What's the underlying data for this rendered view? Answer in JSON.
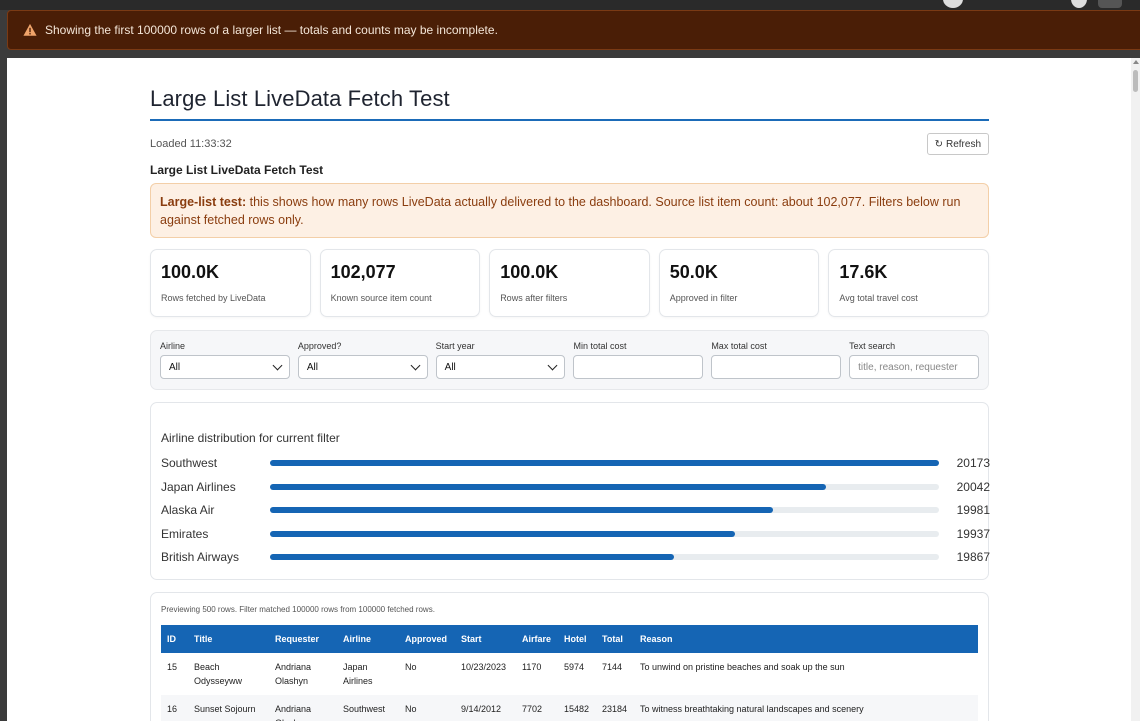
{
  "banner": {
    "text": "Showing the first 100000 rows of a larger list — totals and counts may be incomplete."
  },
  "page": {
    "title": "Large List LiveData Fetch Test",
    "loaded": "Loaded 11:33:32",
    "refresh_label": "Refresh",
    "subtitle": "Large List LiveData Fetch Test"
  },
  "alert": {
    "bold": "Large-list test:",
    "text": " this shows how many rows LiveData actually delivered to the dashboard. Source list item count: about 102,077. Filters below run against fetched rows only."
  },
  "stats": [
    {
      "value": "100.0K",
      "label": "Rows fetched by LiveData"
    },
    {
      "value": "102,077",
      "label": "Known source item count"
    },
    {
      "value": "100.0K",
      "label": "Rows after filters"
    },
    {
      "value": "50.0K",
      "label": "Approved in filter"
    },
    {
      "value": "17.6K",
      "label": "Avg total travel cost"
    }
  ],
  "filters": {
    "airline": {
      "label": "Airline",
      "value": "All"
    },
    "approved": {
      "label": "Approved?",
      "value": "All"
    },
    "start_year": {
      "label": "Start year",
      "value": "All"
    },
    "min_cost": {
      "label": "Min total cost",
      "value": ""
    },
    "max_cost": {
      "label": "Max total cost",
      "value": ""
    },
    "text_search": {
      "label": "Text search",
      "placeholder": "title, reason, requester"
    }
  },
  "chart_data": {
    "type": "bar",
    "title": "Airline distribution for current filter",
    "categories": [
      "Southwest",
      "Japan Airlines",
      "Alaska Air",
      "Emirates",
      "British Airways"
    ],
    "values": [
      20173,
      20042,
      19981,
      19937,
      19867
    ],
    "max": 20173,
    "color": "#1565b4"
  },
  "table": {
    "preview_text": "Previewing 500 rows. Filter matched 100000 rows from 100000 fetched rows.",
    "columns": [
      "ID",
      "Title",
      "Requester",
      "Airline",
      "Approved",
      "Start",
      "Airfare",
      "Hotel",
      "Total",
      "Reason"
    ],
    "rows": [
      {
        "id": "15",
        "title": "Beach Odysseyww",
        "requester": "Andriana Olashyn",
        "airline": "Japan Airlines",
        "approved": "No",
        "start": "10/23/2023",
        "airfare": "1170",
        "hotel": "5974",
        "total": "7144",
        "reason": "To unwind on pristine beaches and soak up the sun"
      },
      {
        "id": "16",
        "title": "Sunset Sojourn",
        "requester": "Andriana Olashyn",
        "airline": "Southwest",
        "approved": "No",
        "start": "9/14/2012",
        "airfare": "7702",
        "hotel": "15482",
        "total": "23184",
        "reason": "To witness breathtaking natural landscapes and scenery"
      }
    ]
  },
  "colors": {
    "accent": "#1565b4",
    "banner_bg": "#4a1e06",
    "alert_bg": "#fdf0e4",
    "alert_text": "#8a3d0f"
  }
}
